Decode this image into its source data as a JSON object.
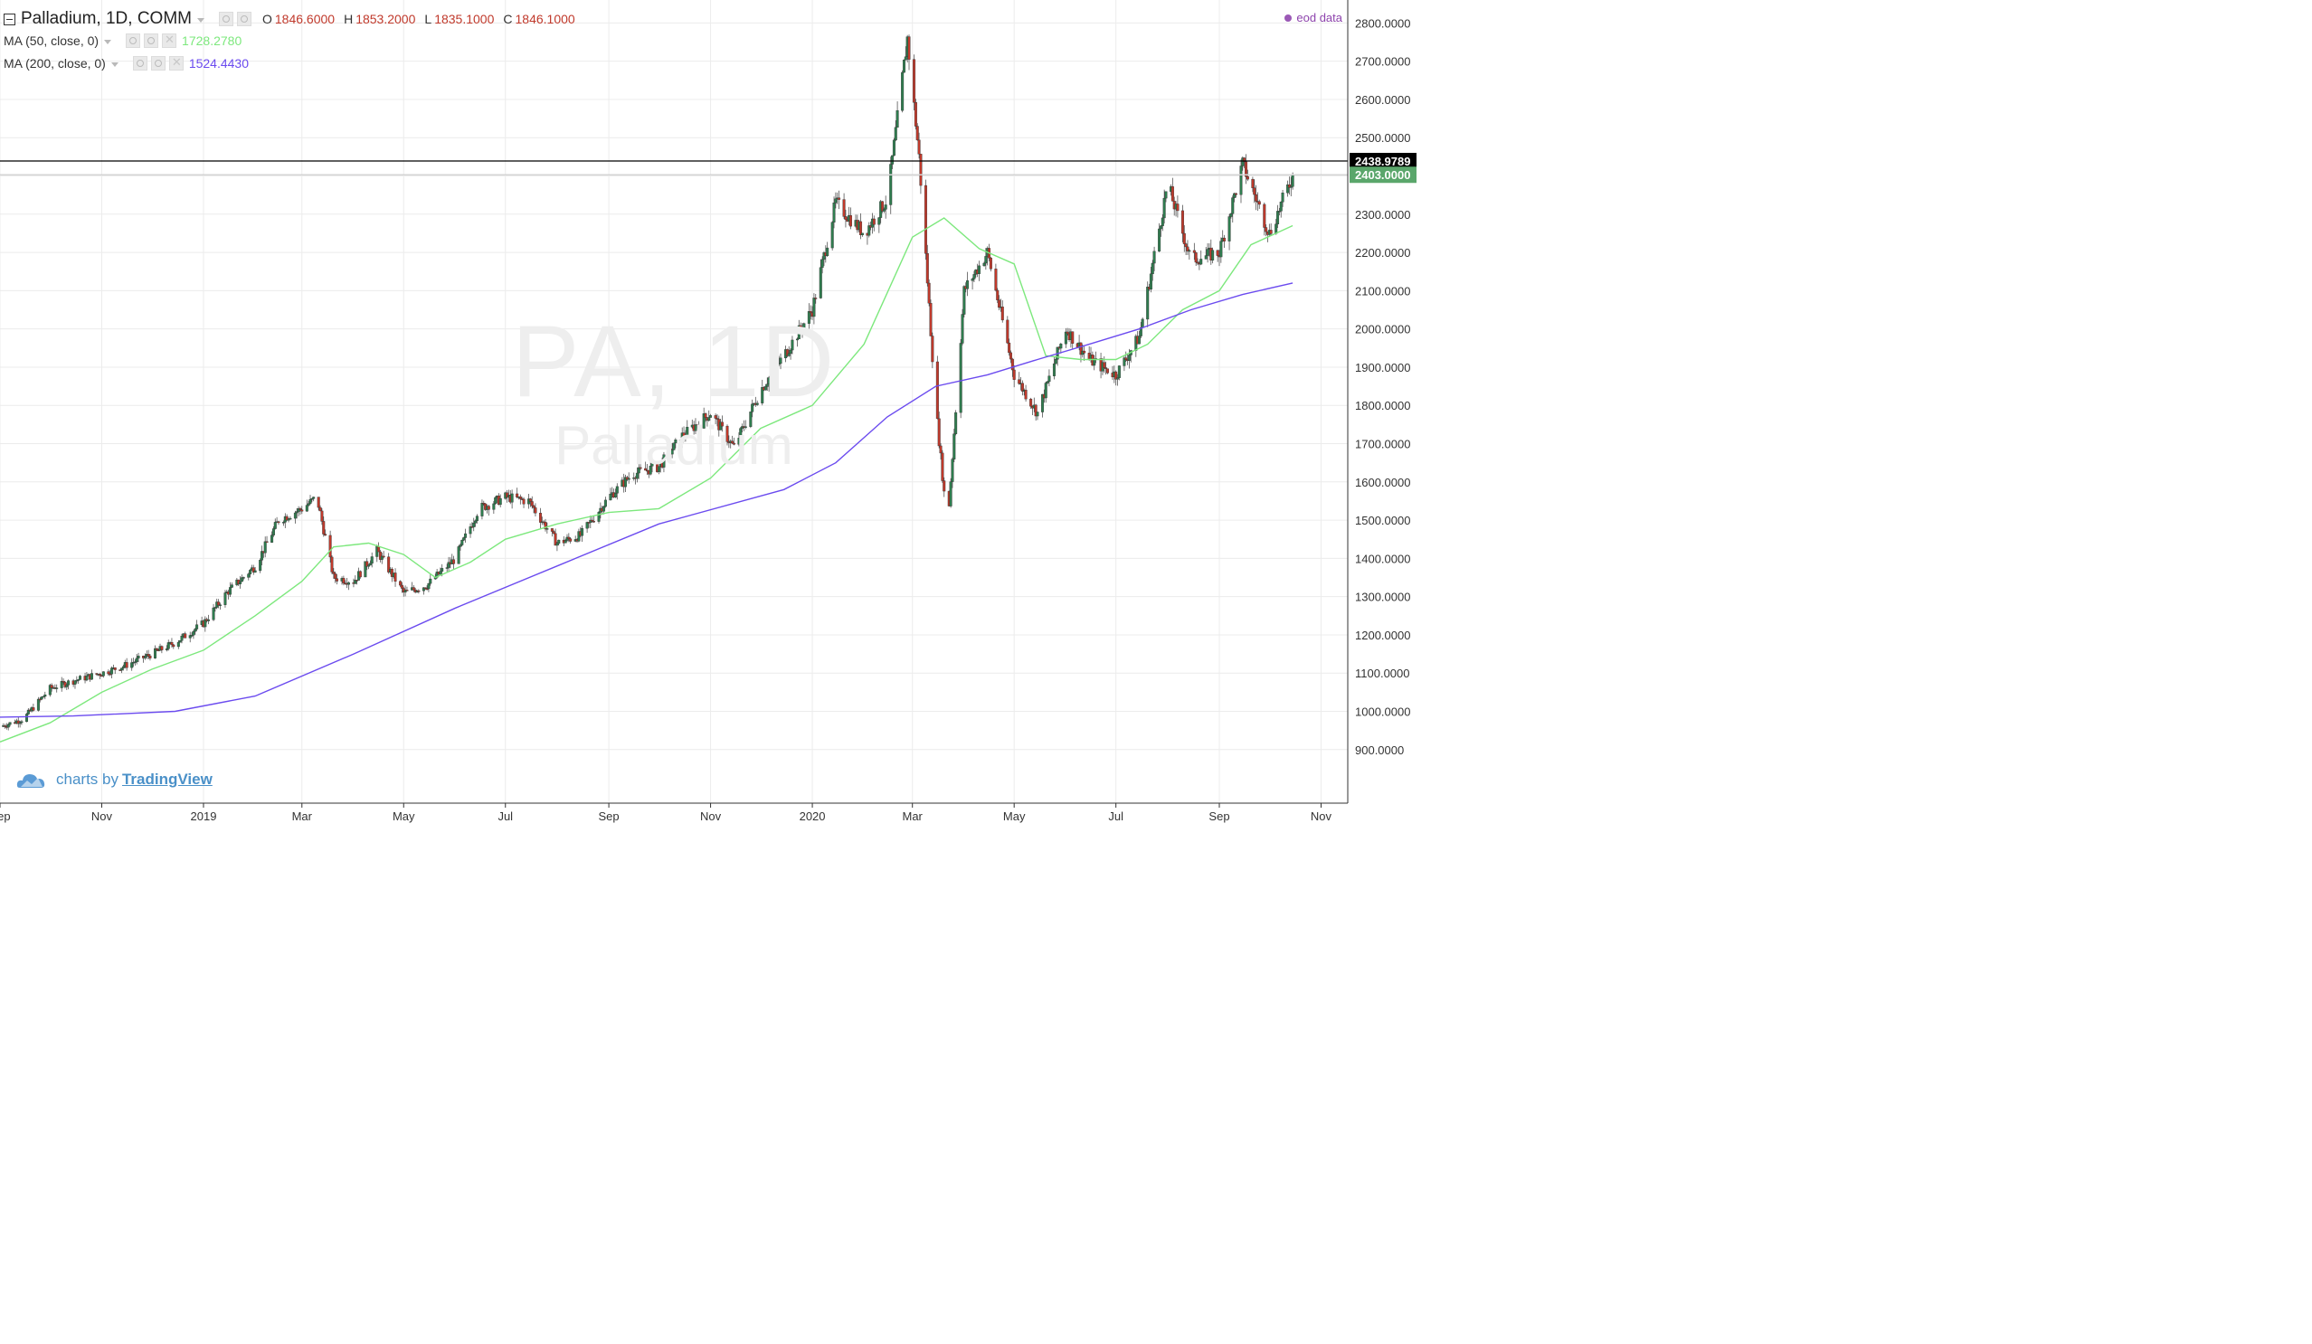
{
  "header": {
    "symbol": "Palladium, 1D, COMM",
    "ohlc": {
      "open_label": "O",
      "open": "1846.6000",
      "high_label": "H",
      "high": "1853.2000",
      "low_label": "L",
      "low": "1835.1000",
      "close_label": "C",
      "close": "1846.1000"
    },
    "source": "eod data"
  },
  "indicators": [
    {
      "label": "MA (50, close, 0)",
      "value": "1728.2780",
      "color": "#7de87d"
    },
    {
      "label": "MA (200, close, 0)",
      "value": "1524.4430",
      "color": "#6b4bef"
    }
  ],
  "watermark": {
    "symbol": "PA, 1D",
    "name": "Palladium"
  },
  "branding": {
    "prefix": "charts by",
    "name": "TradingView"
  },
  "colors": {
    "up": "#2f7d4f",
    "down": "#c0392b",
    "ma50": "#7de87d",
    "ma200": "#6b4bef"
  },
  "chart_data": {
    "type": "line",
    "title": "Palladium, 1D, COMM",
    "y_tick_labels": [
      "900.0000",
      "1000.0000",
      "1100.0000",
      "1200.0000",
      "1300.0000",
      "1400.0000",
      "1500.0000",
      "1600.0000",
      "1700.0000",
      "1800.0000",
      "1900.0000",
      "2000.0000",
      "2100.0000",
      "2200.0000",
      "2300.0000",
      "2400.0000",
      "2500.0000",
      "2600.0000",
      "2700.0000",
      "2800.0000"
    ],
    "x_tick_labels": [
      "Sep",
      "Nov",
      "2019",
      "Mar",
      "May",
      "Jul",
      "Sep",
      "Nov",
      "2020",
      "Mar",
      "May",
      "Jul",
      "Sep",
      "Nov"
    ],
    "x_start": "2018-09-01",
    "x_end": "2020-11-17",
    "ylim": [
      760,
      2860
    ],
    "grid": true,
    "price_lines": [
      {
        "value": 2438.9789,
        "label": "2438.9789",
        "color": "#000000"
      },
      {
        "value": 2403.0,
        "label": "2403.0000",
        "color": "#5aa66b"
      }
    ],
    "series": [
      {
        "name": "Palladium",
        "role": "price",
        "x": [
          "2018-09-01",
          "2018-09-15",
          "2018-10-01",
          "2018-10-15",
          "2018-11-01",
          "2018-11-15",
          "2018-12-01",
          "2018-12-15",
          "2019-01-01",
          "2019-01-15",
          "2019-02-01",
          "2019-02-15",
          "2019-03-01",
          "2019-03-10",
          "2019-03-20",
          "2019-04-01",
          "2019-04-15",
          "2019-05-01",
          "2019-05-15",
          "2019-06-01",
          "2019-06-15",
          "2019-07-01",
          "2019-07-15",
          "2019-08-01",
          "2019-08-15",
          "2019-09-01",
          "2019-09-15",
          "2019-10-01",
          "2019-10-15",
          "2019-11-01",
          "2019-11-15",
          "2019-12-01",
          "2019-12-15",
          "2020-01-01",
          "2020-01-15",
          "2020-02-01",
          "2020-02-15",
          "2020-02-27",
          "2020-03-05",
          "2020-03-15",
          "2020-03-22",
          "2020-04-01",
          "2020-04-15",
          "2020-05-01",
          "2020-05-15",
          "2020-06-01",
          "2020-06-15",
          "2020-07-01",
          "2020-07-15",
          "2020-08-01",
          "2020-08-15",
          "2020-09-01",
          "2020-09-15",
          "2020-10-01",
          "2020-10-15"
        ],
        "values": [
          960,
          980,
          1060,
          1080,
          1100,
          1120,
          1150,
          1180,
          1230,
          1310,
          1380,
          1500,
          1530,
          1560,
          1350,
          1340,
          1420,
          1310,
          1330,
          1400,
          1530,
          1560,
          1550,
          1440,
          1460,
          1560,
          1620,
          1640,
          1720,
          1780,
          1690,
          1840,
          1930,
          2050,
          2330,
          2250,
          2340,
          2760,
          2450,
          1800,
          1480,
          2100,
          2200,
          1880,
          1780,
          2000,
          1920,
          1880,
          1980,
          2380,
          2180,
          2200,
          2430,
          2250,
          2400
        ]
      },
      {
        "name": "MA (50, close, 0)",
        "role": "ma",
        "x": [
          "2018-09-01",
          "2018-10-01",
          "2018-11-01",
          "2018-12-01",
          "2019-01-01",
          "2019-02-01",
          "2019-03-01",
          "2019-03-20",
          "2019-04-10",
          "2019-05-01",
          "2019-05-20",
          "2019-06-10",
          "2019-07-01",
          "2019-08-01",
          "2019-09-01",
          "2019-10-01",
          "2019-11-01",
          "2019-12-01",
          "2020-01-01",
          "2020-02-01",
          "2020-03-01",
          "2020-03-20",
          "2020-04-10",
          "2020-05-01",
          "2020-05-20",
          "2020-06-10",
          "2020-07-01",
          "2020-07-20",
          "2020-08-10",
          "2020-09-01",
          "2020-09-20",
          "2020-10-15"
        ],
        "values": [
          920,
          970,
          1050,
          1110,
          1160,
          1250,
          1340,
          1430,
          1440,
          1410,
          1350,
          1390,
          1450,
          1490,
          1520,
          1530,
          1610,
          1740,
          1800,
          1960,
          2240,
          2290,
          2210,
          2170,
          1930,
          1920,
          1920,
          1960,
          2050,
          2100,
          2220,
          2270
        ]
      },
      {
        "name": "MA (200, close, 0)",
        "role": "ma",
        "x": [
          "2018-09-01",
          "2018-10-15",
          "2018-12-15",
          "2019-02-01",
          "2019-04-01",
          "2019-06-01",
          "2019-08-01",
          "2019-10-01",
          "2019-12-15",
          "2020-01-15",
          "2020-02-15",
          "2020-03-15",
          "2020-04-15",
          "2020-05-15",
          "2020-06-15",
          "2020-07-15",
          "2020-08-15",
          "2020-09-15",
          "2020-10-15"
        ],
        "values": [
          985,
          988,
          1000,
          1040,
          1150,
          1270,
          1380,
          1490,
          1580,
          1650,
          1770,
          1850,
          1880,
          1920,
          1960,
          2000,
          2050,
          2090,
          2120
        ]
      }
    ]
  }
}
